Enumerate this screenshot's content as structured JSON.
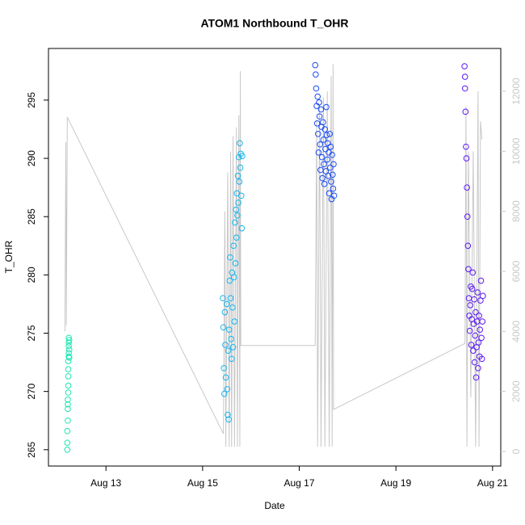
{
  "chart_data": {
    "type": "scatter",
    "title": "ATOM1 Northbound T_OHR",
    "x_label": "Date",
    "y_label": "T_OHR",
    "xlim": [
      11.81,
      21.17
    ],
    "ylim": [
      263.6,
      299.43
    ],
    "y2lim": [
      -484,
      13426
    ],
    "xticks": [
      {
        "value": 13,
        "label": "Aug 13"
      },
      {
        "value": 15,
        "label": "Aug 15"
      },
      {
        "value": 17,
        "label": "Aug 17"
      },
      {
        "value": 19,
        "label": "Aug 19"
      },
      {
        "value": 21,
        "label": "Aug 21"
      }
    ],
    "yticks": [
      265,
      270,
      275,
      280,
      285,
      290,
      295
    ],
    "y2ticks": [
      0,
      2000,
      4000,
      6000,
      8000,
      10000,
      12000
    ],
    "grid": false,
    "series": [
      {
        "color": "#c8c8c8",
        "axis": "y2",
        "x": [
          12.15,
          12.17,
          12.18,
          12.2,
          15.43,
          15.46,
          15.48,
          15.52,
          15.55,
          15.58,
          15.6,
          15.63,
          15.66,
          15.7,
          15.72,
          15.75,
          15.77,
          15.78,
          15.79,
          17.33,
          17.36,
          17.38,
          17.42,
          17.45,
          17.5,
          17.53,
          17.58,
          17.62,
          17.66,
          17.68,
          17.7,
          17.71,
          20.43,
          20.45,
          20.47,
          20.5,
          20.55,
          20.6,
          20.65,
          20.7,
          20.72,
          20.75,
          20.78
        ],
        "values": [
          4000,
          10300,
          4200,
          11140,
          590,
          8000,
          160,
          9300,
          160,
          10000,
          160,
          10500,
          160,
          10800,
          160,
          11200,
          160,
          12670,
          3530,
          3530,
          11000,
          160,
          11500,
          160,
          11800,
          160,
          12000,
          160,
          12500,
          160,
          12900,
          1400,
          3600,
          11500,
          160,
          10000,
          1800,
          10000,
          160,
          12000,
          160,
          11000,
          10400
        ]
      },
      {
        "color": "#19e6b0",
        "x": [
          12.2,
          12.2,
          12.2,
          12.21,
          12.21,
          12.21,
          12.21,
          12.22,
          12.22,
          12.22,
          12.22,
          12.22,
          12.23,
          12.23,
          12.23,
          12.23,
          12.23,
          12.24,
          12.24,
          12.24
        ],
        "values": [
          265.0,
          265.6,
          266.6,
          267.5,
          268.5,
          268.9,
          269.3,
          269.9,
          270.5,
          271.3,
          271.9,
          272.6,
          273.0,
          273.3,
          273.9,
          274.2,
          274.6,
          272.9,
          273.6,
          274.4
        ]
      },
      {
        "color": "#16b6f0",
        "x": [
          15.42,
          15.43,
          15.44,
          15.45,
          15.46,
          15.47,
          15.48,
          15.5,
          15.51,
          15.52,
          15.53,
          15.54,
          15.55,
          15.56,
          15.57,
          15.58,
          15.59,
          15.6,
          15.61,
          15.62,
          15.63,
          15.64,
          15.65,
          15.66,
          15.67,
          15.68,
          15.69,
          15.7,
          15.71,
          15.72,
          15.73,
          15.74,
          15.75,
          15.76,
          15.77,
          15.78,
          15.79,
          15.8,
          15.81,
          15.82
        ],
        "values": [
          278.0,
          275.5,
          272.0,
          269.8,
          276.8,
          274.0,
          271.2,
          277.5,
          270.2,
          268.0,
          273.5,
          267.6,
          275.3,
          279.5,
          281.5,
          278.0,
          274.5,
          272.8,
          280.2,
          277.2,
          273.8,
          282.5,
          279.8,
          276.0,
          284.5,
          281.0,
          285.6,
          283.2,
          287.0,
          285.1,
          288.5,
          286.2,
          290.1,
          288.0,
          291.3,
          289.2,
          290.4,
          286.8,
          284.0,
          290.2
        ]
      },
      {
        "color": "#1a4bf5",
        "x": [
          17.33,
          17.34,
          17.35,
          17.36,
          17.37,
          17.38,
          17.39,
          17.4,
          17.41,
          17.42,
          17.43,
          17.44,
          17.45,
          17.46,
          17.47,
          17.48,
          17.49,
          17.5,
          17.51,
          17.52,
          17.53,
          17.54,
          17.55,
          17.56,
          17.57,
          17.58,
          17.59,
          17.6,
          17.61,
          17.62,
          17.63,
          17.64,
          17.65,
          17.66,
          17.67,
          17.68,
          17.69,
          17.7,
          17.71,
          17.72
        ],
        "values": [
          298.0,
          297.2,
          296.0,
          294.5,
          293.0,
          295.3,
          292.1,
          290.5,
          294.8,
          293.6,
          291.2,
          289.0,
          294.2,
          292.7,
          290.1,
          288.3,
          293.1,
          291.6,
          289.5,
          287.8,
          292.5,
          290.8,
          288.9,
          294.4,
          292.0,
          289.9,
          291.3,
          288.5,
          290.5,
          287.0,
          292.1,
          289.2,
          291.0,
          288.0,
          286.5,
          290.3,
          288.6,
          287.4,
          289.5,
          286.8
        ]
      },
      {
        "color": "#5b1af5",
        "x": [
          20.42,
          20.43,
          20.43,
          20.44,
          20.45,
          20.46,
          20.47,
          20.48,
          20.49,
          20.5,
          20.51,
          20.52,
          20.53,
          20.54,
          20.55,
          20.56,
          20.57,
          20.58,
          20.59,
          20.6,
          20.61,
          20.62,
          20.63,
          20.64,
          20.65,
          20.66,
          20.67,
          20.68,
          20.69,
          20.7,
          20.71,
          20.72,
          20.73,
          20.74,
          20.75,
          20.76,
          20.77,
          20.78,
          20.79,
          20.8
        ],
        "values": [
          297.9,
          297.0,
          296.0,
          294.0,
          291.0,
          290.0,
          287.5,
          285.0,
          282.5,
          280.5,
          278.0,
          276.5,
          275.2,
          277.4,
          279.0,
          274.0,
          276.2,
          278.8,
          280.2,
          273.5,
          275.8,
          277.9,
          272.5,
          274.8,
          276.8,
          271.2,
          273.8,
          276.0,
          278.5,
          272.0,
          274.2,
          276.5,
          273.0,
          275.3,
          277.8,
          279.5,
          274.6,
          272.8,
          276.0,
          278.2
        ]
      }
    ]
  }
}
